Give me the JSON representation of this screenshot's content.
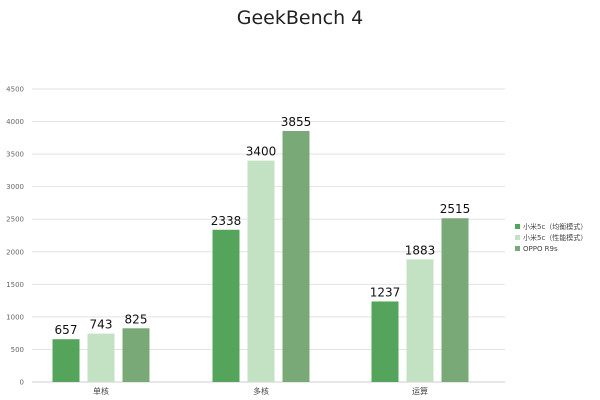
{
  "chart_data": {
    "type": "bar",
    "title": "GeekBench 4",
    "categories": [
      "单核",
      "多核",
      "运算"
    ],
    "series": [
      {
        "name": "小米5c（均衡模式）",
        "values": [
          657,
          2338,
          1237
        ],
        "color": "#55a45b"
      },
      {
        "name": "小米5c（性能模式）",
        "values": [
          743,
          3400,
          1883
        ],
        "color": "#c3e2c4"
      },
      {
        "name": "OPPO R9s",
        "values": [
          825,
          3855,
          2515
        ],
        "color": "#78a977"
      }
    ],
    "ylim": [
      0,
      4500
    ],
    "yticks": [
      0,
      500,
      1000,
      1500,
      2000,
      2500,
      3000,
      3500,
      4000,
      4500
    ],
    "grid": true,
    "legend_position": "right"
  }
}
